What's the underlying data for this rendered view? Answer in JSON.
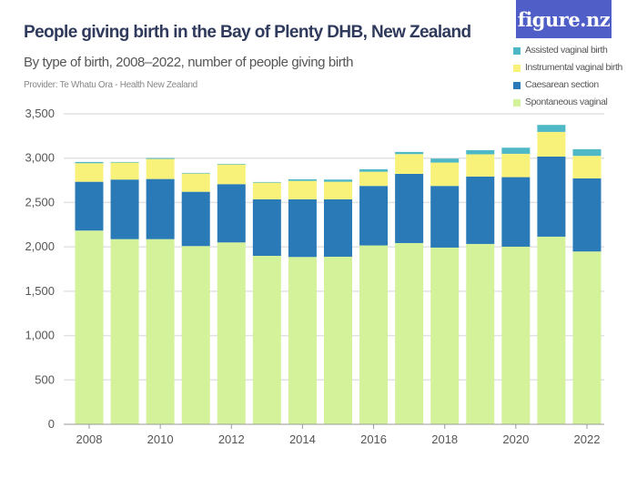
{
  "title": "People giving birth in the Bay of Plenty DHB, New Zealand",
  "subtitle": "By type of birth, 2008–2022, number of people giving birth",
  "provider": "Provider: Te Whatu Ora - Health New Zealand",
  "logo_text": "figure.nz",
  "chart_data": {
    "type": "bar",
    "stacked": true,
    "title": "People giving birth in the Bay of Plenty DHB, New Zealand",
    "xlabel": "",
    "ylabel": "",
    "ylim": [
      0,
      3500
    ],
    "yticks": [
      0,
      500,
      1000,
      1500,
      2000,
      2500,
      3000,
      3500
    ],
    "ytick_labels": [
      "0",
      "500",
      "1,000",
      "1,500",
      "2,000",
      "2,500",
      "3,000",
      "3,500"
    ],
    "xtick_labels": [
      "2008",
      "2010",
      "2012",
      "2014",
      "2016",
      "2018",
      "2020",
      "2022"
    ],
    "categories": [
      "2008",
      "2009",
      "2010",
      "2011",
      "2012",
      "2013",
      "2014",
      "2015",
      "2016",
      "2017",
      "2018",
      "2019",
      "2020",
      "2021",
      "2022"
    ],
    "grid": true,
    "legend_position": "top-right",
    "series": [
      {
        "name": "Spontaneous vaginal",
        "color": "#d3f29a",
        "values": [
          2184,
          2087,
          2087,
          2009,
          2050,
          1899,
          1886,
          1889,
          2016,
          2043,
          1992,
          2033,
          2002,
          2115,
          1948
        ]
      },
      {
        "name": "Caesarean section",
        "color": "#2a7ab7",
        "values": [
          550,
          672,
          678,
          612,
          657,
          637,
          650,
          647,
          671,
          780,
          695,
          760,
          784,
          903,
          824
        ]
      },
      {
        "name": "Instrumental vaginal birth",
        "color": "#f9f27a",
        "values": [
          209,
          191,
          226,
          206,
          222,
          188,
          208,
          198,
          160,
          223,
          263,
          250,
          263,
          278,
          254
        ]
      },
      {
        "name": "Assisted vaginal birth",
        "color": "#4fb8c6",
        "values": [
          14,
          7,
          10,
          7,
          7,
          7,
          18,
          25,
          28,
          24,
          45,
          47,
          69,
          79,
          75
        ]
      }
    ]
  }
}
